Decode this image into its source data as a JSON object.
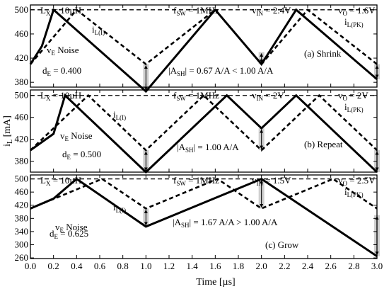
{
  "chart_data": {
    "type": "line",
    "xlabel": "Time [µs]",
    "ylabel": "i_L [mA]",
    "xlim": [
      0,
      3.0
    ],
    "xticks": [
      "0.0",
      "0.2",
      "0.4",
      "0.6",
      "0.8",
      "1.0",
      "1.2",
      "1.4",
      "1.6",
      "1.8",
      "2.0",
      "2.2",
      "2.4",
      "2.6",
      "2.8",
      "3.0"
    ],
    "panels": [
      {
        "id": "a",
        "ylim": [
          372,
          508
        ],
        "ref_level": 500,
        "yticks": [
          "380",
          "420",
          "460",
          "500"
        ],
        "labels": {
          "lx": "L",
          "lx_sub": "X",
          "lx_val": " = 10µH",
          "fsw": "f",
          "fsw_sub": "SW",
          "fsw_val": " = 1MHz",
          "vin": "v",
          "vin_sub": "IN",
          "vin_val": " = 2.4V",
          "vo": "v",
          "vo_sub": "O",
          "vo_val": " = 1.6V",
          "il": "i",
          "il_sub": "L(I)",
          "ilpk": "i",
          "ilpk_sub": "L(PK)",
          "noise": "v",
          "noise_sub": "E",
          "noise_val": " Noise",
          "de": "d",
          "de_sub": "E",
          "de_val": " = 0.400",
          "ash": "|A",
          "ash_sub": "SH",
          "ash_val": "| = 0.67 A/A < 1.00 A/A",
          "mode": "(a) Shrink"
        },
        "series": [
          {
            "style": "solid",
            "x": [
              0,
              0.1,
              0.2,
              1.0,
              1.6,
              2.0,
              2.3,
              3.0
            ],
            "y": [
              410,
              440,
              500,
              365,
              500,
              410,
              500,
              385
            ]
          },
          {
            "style": "dashed",
            "x": [
              0,
              0.4,
              1.0,
              1.6,
              2.0,
              2.4,
              3.0
            ],
            "y": [
              410,
              500,
              410,
              500,
              410,
              500,
              410
            ]
          }
        ],
        "bands": [
          {
            "x": 1.0,
            "y": [
              365,
              410
            ]
          },
          {
            "x": 2.0,
            "y": [
              410,
              430
            ]
          },
          {
            "x": 3.0,
            "y": [
              385,
              410
            ]
          }
        ]
      },
      {
        "id": "b",
        "ylim": [
          360,
          510
        ],
        "ref_level": 500,
        "yticks": [
          "380",
          "420",
          "460",
          "500"
        ],
        "labels": {
          "lx": "L",
          "lx_sub": "X",
          "lx_val": " = 10µH",
          "fsw": "f",
          "fsw_sub": "SW",
          "fsw_val": " = 1MHz",
          "vin": "v",
          "vin_sub": "IN",
          "vin_val": " = 2V",
          "vo": "v",
          "vo_sub": "O",
          "vo_val": " = 2V",
          "il": "i",
          "il_sub": "L(I)",
          "ilpk": "i",
          "ilpk_sub": "L(PK)",
          "noise": "v",
          "noise_sub": "E",
          "noise_val": " Noise",
          "de": "d",
          "de_sub": "E",
          "de_val": " = 0.500",
          "ash": "|A",
          "ash_sub": "SH",
          "ash_val": "| = 1.00 A/A",
          "mode": "(b) Repeat"
        },
        "series": [
          {
            "style": "solid",
            "x": [
              0,
              0.2,
              0.3,
              1.0,
              1.7,
              2.0,
              2.3,
              3.0
            ],
            "y": [
              400,
              430,
              500,
              360,
              500,
              440,
              500,
              360
            ]
          },
          {
            "style": "dashed",
            "x": [
              0,
              0.5,
              1.0,
              1.5,
              2.0,
              2.5,
              3.0
            ],
            "y": [
              400,
              500,
              400,
              500,
              400,
              500,
              400
            ]
          }
        ],
        "bands": [
          {
            "x": 1.0,
            "y": [
              360,
              400
            ]
          },
          {
            "x": 2.0,
            "y": [
              400,
              440
            ]
          },
          {
            "x": 3.0,
            "y": [
              360,
              400
            ]
          }
        ]
      },
      {
        "id": "c",
        "ylim": [
          258,
          512
        ],
        "ref_level": 500,
        "yticks": [
          "260",
          "300",
          "340",
          "380",
          "420",
          "460",
          "500"
        ],
        "labels": {
          "lx": "L",
          "lx_sub": "X",
          "lx_val": " = 10µH",
          "fsw": "f",
          "fsw_sub": "SW",
          "fsw_val": " = 1MHz",
          "vin": "v",
          "vin_sub": "IN",
          "vin_val": " = 1.5V",
          "vo": "v",
          "vo_sub": "O",
          "vo_val": " = 2.5V",
          "il": "i",
          "il_sub": "L(I)",
          "ilpk": "i",
          "ilpk_sub": "L(PK)",
          "noise": "v",
          "noise_sub": "E",
          "noise_val": " Noise",
          "de": "d",
          "de_sub": "E",
          "de_val": " = 0.625",
          "ash": "|A",
          "ash_sub": "SH",
          "ash_val": "| = 1.67 A/A > 1.00 A/A",
          "mode": "(c) Grow"
        },
        "series": [
          {
            "style": "solid",
            "x": [
              0,
              0.2,
              0.4,
              1.0,
              2.0,
              3.0
            ],
            "y": [
              410,
              440,
              500,
              355,
              500,
              265
            ]
          },
          {
            "style": "dashed",
            "x": [
              0,
              0.62,
              1.0,
              1.62,
              2.0,
              2.62,
              3.0
            ],
            "y": [
              410,
              500,
              410,
              500,
              410,
              500,
              410
            ]
          }
        ],
        "bands": [
          {
            "x": 1.0,
            "y": [
              355,
              410
            ]
          },
          {
            "x": 2.0,
            "y": [
              410,
              500
            ]
          },
          {
            "x": 3.0,
            "y": [
              265,
              390
            ]
          }
        ]
      }
    ]
  }
}
